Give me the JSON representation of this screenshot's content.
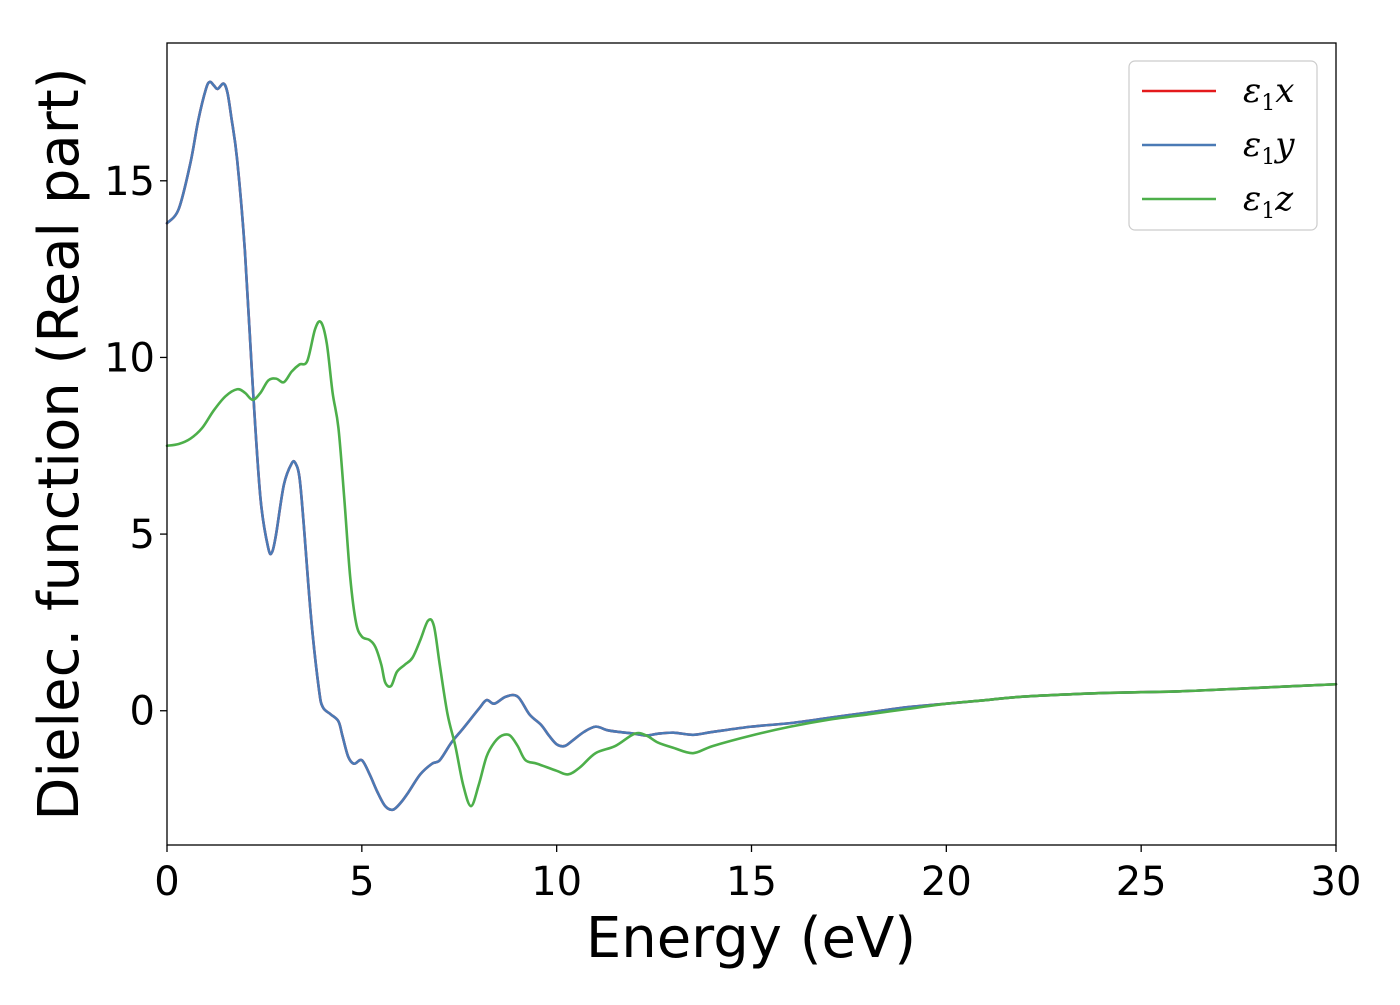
{
  "chart_data": {
    "type": "line",
    "title": "",
    "xlabel": "Energy (eV)",
    "ylabel": "Dielec. function (Real part)",
    "xlim": [
      0,
      30
    ],
    "ylim": [
      -3.8,
      18.9
    ],
    "xticks": [
      0,
      5,
      10,
      15,
      20,
      25,
      30
    ],
    "yticks": [
      0,
      5,
      10,
      15
    ],
    "grid": false,
    "legend_position": "top-right",
    "series": [
      {
        "name": "ε₁x",
        "legend_base": "ε",
        "legend_sub": "1",
        "legend_tail": "x",
        "color": "#e41a1c",
        "x": [
          0,
          0.3,
          0.6,
          0.8,
          1.0,
          1.1,
          1.2,
          1.3,
          1.45,
          1.55,
          1.65,
          1.8,
          2.0,
          2.2,
          2.4,
          2.6,
          2.7,
          2.8,
          3.0,
          3.2,
          3.3,
          3.4,
          3.5,
          3.7,
          3.9,
          4.0,
          4.2,
          4.4,
          4.5,
          4.65,
          4.8,
          5.0,
          5.2,
          5.4,
          5.6,
          5.8,
          6.0,
          6.2,
          6.5,
          6.8,
          7.0,
          7.3,
          7.6,
          8.0,
          8.2,
          8.4,
          8.7,
          9.0,
          9.3,
          9.6,
          9.8,
          10.0,
          10.2,
          10.4,
          10.7,
          11.0,
          11.3,
          11.6,
          12.0,
          12.3,
          12.6,
          13.0,
          13.5,
          14.0,
          15.0,
          16.0,
          17.0,
          18.0,
          19.0,
          20.0,
          21.0,
          22.0,
          24.0,
          26.0,
          28.0,
          30.0
        ],
        "values": [
          13.8,
          14.2,
          15.5,
          16.7,
          17.6,
          17.8,
          17.7,
          17.6,
          17.75,
          17.5,
          16.8,
          15.6,
          13.0,
          9.2,
          6.0,
          4.6,
          4.5,
          5.0,
          6.4,
          7.0,
          7.0,
          6.6,
          5.4,
          2.6,
          0.6,
          0.1,
          -0.1,
          -0.3,
          -0.7,
          -1.3,
          -1.5,
          -1.4,
          -1.8,
          -2.3,
          -2.7,
          -2.8,
          -2.6,
          -2.3,
          -1.8,
          -1.5,
          -1.4,
          -0.9,
          -0.5,
          0.05,
          0.3,
          0.2,
          0.4,
          0.4,
          -0.1,
          -0.4,
          -0.7,
          -0.95,
          -1.0,
          -0.85,
          -0.6,
          -0.45,
          -0.55,
          -0.6,
          -0.65,
          -0.7,
          -0.65,
          -0.62,
          -0.68,
          -0.6,
          -0.45,
          -0.35,
          -0.2,
          -0.05,
          0.1,
          0.2,
          0.3,
          0.4,
          0.5,
          0.55,
          0.65,
          0.75
        ]
      },
      {
        "name": "ε₁y",
        "legend_base": "ε",
        "legend_sub": "1",
        "legend_tail": "y",
        "color": "#4a7ab5",
        "x": [
          0,
          0.3,
          0.6,
          0.8,
          1.0,
          1.1,
          1.2,
          1.3,
          1.45,
          1.55,
          1.65,
          1.8,
          2.0,
          2.2,
          2.4,
          2.6,
          2.7,
          2.8,
          3.0,
          3.2,
          3.3,
          3.4,
          3.5,
          3.7,
          3.9,
          4.0,
          4.2,
          4.4,
          4.5,
          4.65,
          4.8,
          5.0,
          5.2,
          5.4,
          5.6,
          5.8,
          6.0,
          6.2,
          6.5,
          6.8,
          7.0,
          7.3,
          7.6,
          8.0,
          8.2,
          8.4,
          8.7,
          9.0,
          9.3,
          9.6,
          9.8,
          10.0,
          10.2,
          10.4,
          10.7,
          11.0,
          11.3,
          11.6,
          12.0,
          12.3,
          12.6,
          13.0,
          13.5,
          14.0,
          15.0,
          16.0,
          17.0,
          18.0,
          19.0,
          20.0,
          21.0,
          22.0,
          24.0,
          26.0,
          28.0,
          30.0
        ],
        "values": [
          13.8,
          14.2,
          15.5,
          16.7,
          17.6,
          17.8,
          17.7,
          17.6,
          17.75,
          17.5,
          16.8,
          15.6,
          13.0,
          9.2,
          6.0,
          4.6,
          4.5,
          5.0,
          6.4,
          7.0,
          7.0,
          6.6,
          5.4,
          2.6,
          0.6,
          0.1,
          -0.1,
          -0.3,
          -0.7,
          -1.3,
          -1.5,
          -1.4,
          -1.8,
          -2.3,
          -2.7,
          -2.8,
          -2.6,
          -2.3,
          -1.8,
          -1.5,
          -1.4,
          -0.9,
          -0.5,
          0.05,
          0.3,
          0.2,
          0.4,
          0.4,
          -0.1,
          -0.4,
          -0.7,
          -0.95,
          -1.0,
          -0.85,
          -0.6,
          -0.45,
          -0.55,
          -0.6,
          -0.65,
          -0.7,
          -0.65,
          -0.62,
          -0.68,
          -0.6,
          -0.45,
          -0.35,
          -0.2,
          -0.05,
          0.1,
          0.2,
          0.3,
          0.4,
          0.5,
          0.55,
          0.65,
          0.75
        ]
      },
      {
        "name": "ε₁z",
        "legend_base": "ε",
        "legend_sub": "1",
        "legend_tail": "z",
        "color": "#4daf4a",
        "x": [
          0,
          0.3,
          0.6,
          0.9,
          1.2,
          1.5,
          1.8,
          2.0,
          2.2,
          2.4,
          2.6,
          2.8,
          3.0,
          3.2,
          3.4,
          3.6,
          3.8,
          3.95,
          4.1,
          4.25,
          4.4,
          4.55,
          4.7,
          4.85,
          5.0,
          5.2,
          5.35,
          5.5,
          5.6,
          5.75,
          5.9,
          6.1,
          6.3,
          6.5,
          6.7,
          6.85,
          7.0,
          7.2,
          7.4,
          7.6,
          7.8,
          8.0,
          8.2,
          8.4,
          8.6,
          8.8,
          9.0,
          9.2,
          9.5,
          10.0,
          10.3,
          10.6,
          11.0,
          11.5,
          12.0,
          12.3,
          12.6,
          13.0,
          13.5,
          14.0,
          15.0,
          16.0,
          17.0,
          18.0,
          19.0,
          20.0,
          21.0,
          22.0,
          24.0,
          26.0,
          28.0,
          30.0
        ],
        "values": [
          7.5,
          7.55,
          7.7,
          8.0,
          8.5,
          8.9,
          9.1,
          9.0,
          8.8,
          9.0,
          9.35,
          9.4,
          9.3,
          9.6,
          9.8,
          9.9,
          10.8,
          11.0,
          10.4,
          9.0,
          8.0,
          6.0,
          3.8,
          2.5,
          2.1,
          2.0,
          1.8,
          1.3,
          0.8,
          0.7,
          1.1,
          1.3,
          1.5,
          2.0,
          2.55,
          2.4,
          1.3,
          -0.1,
          -1.0,
          -2.1,
          -2.7,
          -2.1,
          -1.3,
          -0.9,
          -0.7,
          -0.7,
          -1.0,
          -1.4,
          -1.5,
          -1.7,
          -1.8,
          -1.6,
          -1.2,
          -1.0,
          -0.65,
          -0.7,
          -0.9,
          -1.05,
          -1.2,
          -1.0,
          -0.7,
          -0.45,
          -0.25,
          -0.1,
          0.05,
          0.2,
          0.3,
          0.4,
          0.5,
          0.55,
          0.65,
          0.75
        ]
      }
    ]
  }
}
